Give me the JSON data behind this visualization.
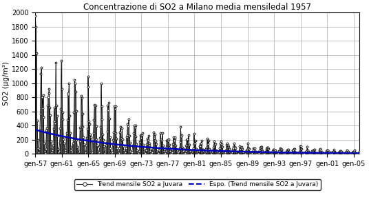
{
  "title": "Concentrazione di SO2 a Milano media mensiledal 1957",
  "ylabel": "SO2 (μg/m³)",
  "xlim_months": 588,
  "ylim": [
    0,
    2000
  ],
  "yticks": [
    0,
    200,
    400,
    600,
    800,
    1000,
    1200,
    1400,
    1600,
    1800,
    2000
  ],
  "xtick_labels": [
    "gen-57",
    "gen-61",
    "gen-65",
    "gen-69",
    "gen-73",
    "gen-77",
    "gen-81",
    "gen-85",
    "gen-89",
    "gen-93",
    "gen-97",
    "gen-01",
    "gen-05"
  ],
  "xtick_month_indices": [
    0,
    48,
    96,
    144,
    192,
    240,
    288,
    336,
    384,
    432,
    480,
    528,
    576
  ],
  "trend_color": "#000000",
  "expo_color": "#0000bb",
  "expo_start_y": 340,
  "expo_end_y": 8,
  "background_color": "#ffffff",
  "plot_bg_color": "#ffffff",
  "grid_color": "#aaaaaa",
  "legend_label_trend": "Trend mensile SO2 a Juvara",
  "legend_label_expo": "Espo. (Trend mensile SO2 a Juvara)",
  "title_fontsize": 8.5,
  "axis_fontsize": 7.5,
  "tick_fontsize": 7,
  "legend_fontsize": 6.5,
  "key_peaks": {
    "0": 1950,
    "1": 1800,
    "2": 1430,
    "11": 1220,
    "12": 800,
    "13": 650,
    "23": 800,
    "24": 860,
    "25": 920,
    "35": 460,
    "36": 430,
    "47": 1320,
    "48": 920,
    "59": 860,
    "60": 840,
    "71": 1050,
    "72": 1000,
    "73": 880,
    "83": 820,
    "84": 790,
    "95": 1100,
    "96": 950,
    "107": 700,
    "108": 680,
    "119": 1000,
    "120": 680,
    "131": 690,
    "132": 620,
    "143": 680,
    "144": 640,
    "155": 220,
    "156": 200,
    "167": 420,
    "168": 390,
    "179": 400,
    "180": 370,
    "191": 260,
    "192": 230,
    "203": 220,
    "204": 200,
    "215": 230,
    "216": 200,
    "227": 210,
    "228": 190,
    "239": 200,
    "240": 185
  }
}
